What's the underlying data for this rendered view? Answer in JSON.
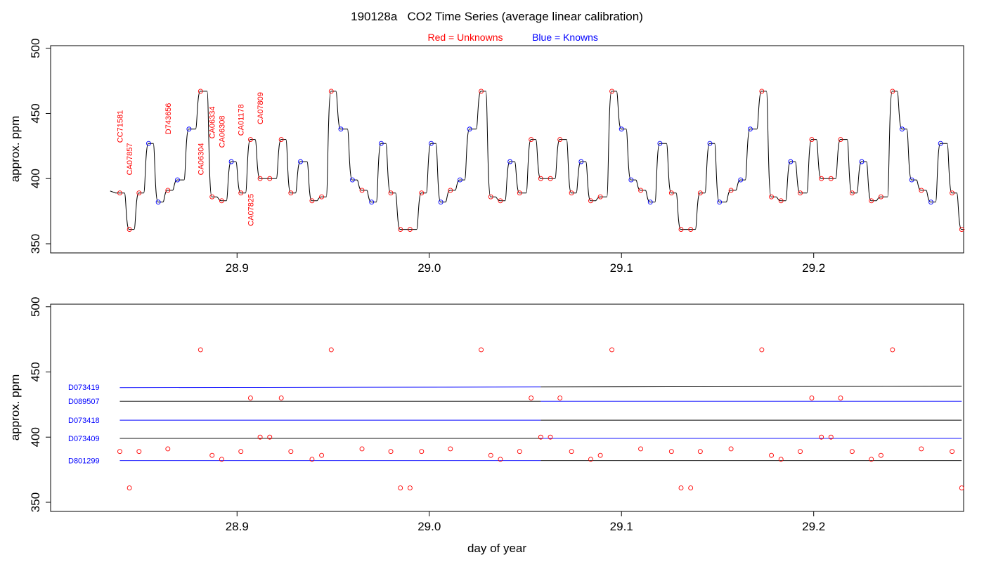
{
  "title": "190128a   CO2 Time Series (average linear calibration)",
  "legend": {
    "unknowns_label": "Red = Unknowns",
    "knowns_label": "Blue = Knowns",
    "unknowns_color": "#ff0000",
    "knowns_color": "#0000ff"
  },
  "chart_data": [
    {
      "type": "line",
      "name": "time-series-panel",
      "xlabel": "",
      "ylabel": "approx. ppm",
      "xlim": [
        28.803,
        29.278
      ],
      "ylim": [
        343,
        502
      ],
      "xticks": [
        28.9,
        29.0,
        29.1,
        29.2
      ],
      "xtick_labels": [
        "28.9",
        "29.0",
        "29.1",
        "29.2"
      ],
      "yticks": [
        350,
        400,
        450,
        500
      ],
      "ytick_labels": [
        "350",
        "400",
        "450",
        "500"
      ],
      "grid": false,
      "trace_start": [
        28.834,
        390.5
      ],
      "points": [
        {
          "x": 28.839,
          "y": 389,
          "color": "#ff0000"
        },
        {
          "x": 28.844,
          "y": 361,
          "color": "#ff0000"
        },
        {
          "x": 28.849,
          "y": 389,
          "color": "#ff0000"
        },
        {
          "x": 28.854,
          "y": 427,
          "color": "#0000ff"
        },
        {
          "x": 28.859,
          "y": 382,
          "color": "#0000ff"
        },
        {
          "x": 28.864,
          "y": 391,
          "color": "#ff0000"
        },
        {
          "x": 28.869,
          "y": 399,
          "color": "#0000ff"
        },
        {
          "x": 28.875,
          "y": 438,
          "color": "#0000ff"
        },
        {
          "x": 28.881,
          "y": 467,
          "color": "#ff0000"
        },
        {
          "x": 28.887,
          "y": 386,
          "color": "#ff0000"
        },
        {
          "x": 28.892,
          "y": 383,
          "color": "#ff0000"
        },
        {
          "x": 28.897,
          "y": 413,
          "color": "#0000ff"
        },
        {
          "x": 28.902,
          "y": 389,
          "color": "#ff0000"
        },
        {
          "x": 28.907,
          "y": 430,
          "color": "#ff0000"
        },
        {
          "x": 28.912,
          "y": 400,
          "color": "#ff0000"
        },
        {
          "x": 28.917,
          "y": 400,
          "color": "#ff0000"
        },
        {
          "x": 28.923,
          "y": 430,
          "color": "#ff0000"
        },
        {
          "x": 28.928,
          "y": 389,
          "color": "#ff0000"
        },
        {
          "x": 28.933,
          "y": 413,
          "color": "#0000ff"
        },
        {
          "x": 28.939,
          "y": 383,
          "color": "#ff0000"
        },
        {
          "x": 28.944,
          "y": 386,
          "color": "#ff0000"
        },
        {
          "x": 28.949,
          "y": 467,
          "color": "#ff0000"
        },
        {
          "x": 28.954,
          "y": 438,
          "color": "#0000ff"
        },
        {
          "x": 28.96,
          "y": 399,
          "color": "#0000ff"
        },
        {
          "x": 28.965,
          "y": 391,
          "color": "#ff0000"
        },
        {
          "x": 28.97,
          "y": 382,
          "color": "#0000ff"
        },
        {
          "x": 28.975,
          "y": 427,
          "color": "#0000ff"
        },
        {
          "x": 28.98,
          "y": 389,
          "color": "#ff0000"
        },
        {
          "x": 28.985,
          "y": 361,
          "color": "#ff0000"
        },
        {
          "x": 28.99,
          "y": 361,
          "color": "#ff0000"
        },
        {
          "x": 28.996,
          "y": 389,
          "color": "#ff0000"
        },
        {
          "x": 29.001,
          "y": 427,
          "color": "#0000ff"
        },
        {
          "x": 29.006,
          "y": 382,
          "color": "#0000ff"
        },
        {
          "x": 29.011,
          "y": 391,
          "color": "#ff0000"
        },
        {
          "x": 29.016,
          "y": 399,
          "color": "#0000ff"
        },
        {
          "x": 29.021,
          "y": 438,
          "color": "#0000ff"
        },
        {
          "x": 29.027,
          "y": 467,
          "color": "#ff0000"
        },
        {
          "x": 29.032,
          "y": 386,
          "color": "#ff0000"
        },
        {
          "x": 29.037,
          "y": 383,
          "color": "#ff0000"
        },
        {
          "x": 29.042,
          "y": 413,
          "color": "#0000ff"
        },
        {
          "x": 29.047,
          "y": 389,
          "color": "#ff0000"
        },
        {
          "x": 29.053,
          "y": 430,
          "color": "#ff0000"
        },
        {
          "x": 29.058,
          "y": 400,
          "color": "#ff0000"
        },
        {
          "x": 29.063,
          "y": 400,
          "color": "#ff0000"
        },
        {
          "x": 29.068,
          "y": 430,
          "color": "#ff0000"
        },
        {
          "x": 29.074,
          "y": 389,
          "color": "#ff0000"
        },
        {
          "x": 29.079,
          "y": 413,
          "color": "#0000ff"
        },
        {
          "x": 29.084,
          "y": 383,
          "color": "#ff0000"
        },
        {
          "x": 29.089,
          "y": 386,
          "color": "#ff0000"
        },
        {
          "x": 29.095,
          "y": 467,
          "color": "#ff0000"
        },
        {
          "x": 29.1,
          "y": 438,
          "color": "#0000ff"
        },
        {
          "x": 29.105,
          "y": 399,
          "color": "#0000ff"
        },
        {
          "x": 29.11,
          "y": 391,
          "color": "#ff0000"
        },
        {
          "x": 29.115,
          "y": 382,
          "color": "#0000ff"
        },
        {
          "x": 29.12,
          "y": 427,
          "color": "#0000ff"
        },
        {
          "x": 29.126,
          "y": 389,
          "color": "#ff0000"
        },
        {
          "x": 29.131,
          "y": 361,
          "color": "#ff0000"
        },
        {
          "x": 29.136,
          "y": 361,
          "color": "#ff0000"
        },
        {
          "x": 29.141,
          "y": 389,
          "color": "#ff0000"
        },
        {
          "x": 29.146,
          "y": 427,
          "color": "#0000ff"
        },
        {
          "x": 29.151,
          "y": 382,
          "color": "#0000ff"
        },
        {
          "x": 29.157,
          "y": 391,
          "color": "#ff0000"
        },
        {
          "x": 29.162,
          "y": 399,
          "color": "#0000ff"
        },
        {
          "x": 29.167,
          "y": 438,
          "color": "#0000ff"
        },
        {
          "x": 29.173,
          "y": 467,
          "color": "#ff0000"
        },
        {
          "x": 29.178,
          "y": 386,
          "color": "#ff0000"
        },
        {
          "x": 29.183,
          "y": 383,
          "color": "#ff0000"
        },
        {
          "x": 29.188,
          "y": 413,
          "color": "#0000ff"
        },
        {
          "x": 29.193,
          "y": 389,
          "color": "#ff0000"
        },
        {
          "x": 29.199,
          "y": 430,
          "color": "#ff0000"
        },
        {
          "x": 29.204,
          "y": 400,
          "color": "#ff0000"
        },
        {
          "x": 29.209,
          "y": 400,
          "color": "#ff0000"
        },
        {
          "x": 29.214,
          "y": 430,
          "color": "#ff0000"
        },
        {
          "x": 29.22,
          "y": 389,
          "color": "#ff0000"
        },
        {
          "x": 29.225,
          "y": 413,
          "color": "#0000ff"
        },
        {
          "x": 29.23,
          "y": 383,
          "color": "#ff0000"
        },
        {
          "x": 29.235,
          "y": 386,
          "color": "#ff0000"
        },
        {
          "x": 29.241,
          "y": 467,
          "color": "#ff0000"
        },
        {
          "x": 29.246,
          "y": 438,
          "color": "#0000ff"
        },
        {
          "x": 29.251,
          "y": 399,
          "color": "#0000ff"
        },
        {
          "x": 29.256,
          "y": 391,
          "color": "#ff0000"
        },
        {
          "x": 29.261,
          "y": 382,
          "color": "#0000ff"
        },
        {
          "x": 29.266,
          "y": 427,
          "color": "#0000ff"
        },
        {
          "x": 29.272,
          "y": 389,
          "color": "#ff0000"
        },
        {
          "x": 29.277,
          "y": 361,
          "color": "#ff0000"
        }
      ],
      "annotations": [
        {
          "text": "CC71581",
          "x": 28.839,
          "y": 440
        },
        {
          "text": "CA07857",
          "x": 28.844,
          "y": 415
        },
        {
          "text": "D743656",
          "x": 28.864,
          "y": 446
        },
        {
          "text": "CA06304",
          "x": 28.881,
          "y": 415
        },
        {
          "text": "CA06334",
          "x": 28.887,
          "y": 443
        },
        {
          "text": "CA06308",
          "x": 28.892,
          "y": 436
        },
        {
          "text": "CA01178",
          "x": 28.902,
          "y": 445
        },
        {
          "text": "CA07825",
          "x": 28.907,
          "y": 376
        },
        {
          "text": "CA07809",
          "x": 28.912,
          "y": 454
        }
      ]
    },
    {
      "type": "scatter",
      "name": "unknowns-panel",
      "xlabel": "day of year",
      "ylabel": "approx. ppm",
      "xlim": [
        28.803,
        29.278
      ],
      "ylim": [
        343,
        502
      ],
      "xticks": [
        28.9,
        29.0,
        29.1,
        29.2
      ],
      "xtick_labels": [
        "28.9",
        "29.0",
        "29.1",
        "29.2"
      ],
      "yticks": [
        350,
        400,
        450,
        500
      ],
      "ytick_labels": [
        "350",
        "400",
        "450",
        "500"
      ],
      "grid": false,
      "points": [
        {
          "x": 28.839,
          "y": 389
        },
        {
          "x": 28.844,
          "y": 361
        },
        {
          "x": 28.849,
          "y": 389
        },
        {
          "x": 28.864,
          "y": 391
        },
        {
          "x": 28.881,
          "y": 467
        },
        {
          "x": 28.887,
          "y": 386
        },
        {
          "x": 28.892,
          "y": 383
        },
        {
          "x": 28.902,
          "y": 389
        },
        {
          "x": 28.907,
          "y": 430
        },
        {
          "x": 28.912,
          "y": 400
        },
        {
          "x": 28.917,
          "y": 400
        },
        {
          "x": 28.923,
          "y": 430
        },
        {
          "x": 28.928,
          "y": 389
        },
        {
          "x": 28.939,
          "y": 383
        },
        {
          "x": 28.944,
          "y": 386
        },
        {
          "x": 28.949,
          "y": 467
        },
        {
          "x": 28.965,
          "y": 391
        },
        {
          "x": 28.98,
          "y": 389
        },
        {
          "x": 28.985,
          "y": 361
        },
        {
          "x": 28.99,
          "y": 361
        },
        {
          "x": 28.996,
          "y": 389
        },
        {
          "x": 29.011,
          "y": 391
        },
        {
          "x": 29.027,
          "y": 467
        },
        {
          "x": 29.032,
          "y": 386
        },
        {
          "x": 29.037,
          "y": 383
        },
        {
          "x": 29.047,
          "y": 389
        },
        {
          "x": 29.053,
          "y": 430
        },
        {
          "x": 29.058,
          "y": 400
        },
        {
          "x": 29.063,
          "y": 400
        },
        {
          "x": 29.068,
          "y": 430
        },
        {
          "x": 29.074,
          "y": 389
        },
        {
          "x": 29.084,
          "y": 383
        },
        {
          "x": 29.089,
          "y": 386
        },
        {
          "x": 29.095,
          "y": 467
        },
        {
          "x": 29.11,
          "y": 391
        },
        {
          "x": 29.126,
          "y": 389
        },
        {
          "x": 29.131,
          "y": 361
        },
        {
          "x": 29.136,
          "y": 361
        },
        {
          "x": 29.141,
          "y": 389
        },
        {
          "x": 29.157,
          "y": 391
        },
        {
          "x": 29.173,
          "y": 467
        },
        {
          "x": 29.178,
          "y": 386
        },
        {
          "x": 29.183,
          "y": 383
        },
        {
          "x": 29.193,
          "y": 389
        },
        {
          "x": 29.199,
          "y": 430
        },
        {
          "x": 29.204,
          "y": 400
        },
        {
          "x": 29.209,
          "y": 400
        },
        {
          "x": 29.214,
          "y": 430
        },
        {
          "x": 29.22,
          "y": 389
        },
        {
          "x": 29.23,
          "y": 383
        },
        {
          "x": 29.235,
          "y": 386
        },
        {
          "x": 29.241,
          "y": 467
        },
        {
          "x": 29.256,
          "y": 391
        },
        {
          "x": 29.272,
          "y": 389
        },
        {
          "x": 29.277,
          "y": 361
        }
      ],
      "reference_lines": [
        {
          "label": "D073419",
          "y_start": 438,
          "y_end": 439
        },
        {
          "label": "D089507",
          "y_start": 427.5,
          "y_end": 427.5
        },
        {
          "label": "D073418",
          "y_start": 413,
          "y_end": 413
        },
        {
          "label": "D073409",
          "y_start": 399,
          "y_end": 399
        },
        {
          "label": "D801299",
          "y_start": 382,
          "y_end": 382
        }
      ],
      "reference_line_x_range": [
        28.839,
        29.277
      ]
    }
  ]
}
